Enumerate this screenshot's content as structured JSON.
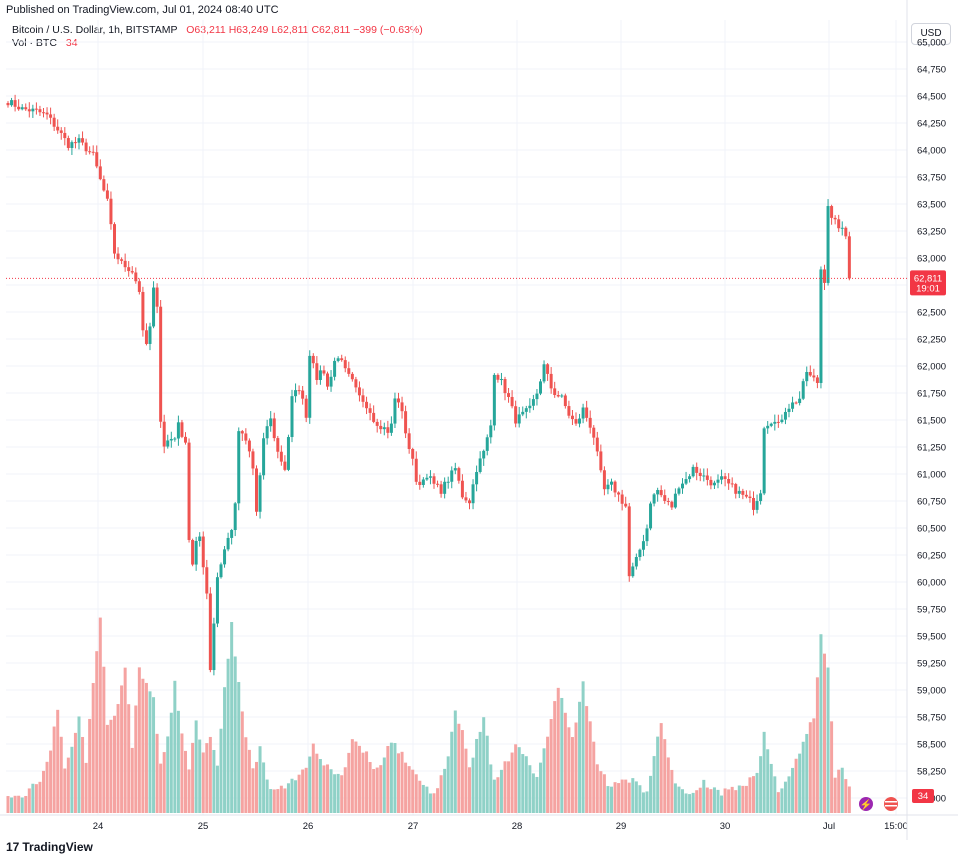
{
  "header": {
    "published": "Published on TradingView.com, Jul 01, 2024 08:40 UTC",
    "symbol": "Bitcoin / U.S. Dollar, 1h, BITSTAMP",
    "open": "O63,211",
    "high": "H63,249",
    "low": "L62,811",
    "close": "C62,811",
    "change": "−399 (−0.63%)",
    "vol_label": "Vol · BTC",
    "vol_value": "34"
  },
  "currency_button": "USD",
  "price_badge": {
    "price": "62,811",
    "countdown": "19:01"
  },
  "volume_badge": "34",
  "footer": {
    "logo_mark": "17",
    "logo_text": "TradingView"
  },
  "colors": {
    "up": "#26a69a",
    "down": "#ef5350",
    "up_vol": "#8fd1c7",
    "down_vol": "#f5a3a1",
    "badge": "#f23645"
  },
  "chart_data": {
    "type": "candlestick",
    "title": "Bitcoin / U.S. Dollar, 1h, BITSTAMP",
    "ylim": [
      57950,
      65000
    ],
    "y_ticks": [
      "65,000",
      "64,750",
      "64,500",
      "64,250",
      "64,000",
      "63,750",
      "63,500",
      "63,250",
      "63,000",
      "62,750",
      "62,500",
      "62,250",
      "62,000",
      "61,750",
      "61,500",
      "61,250",
      "61,000",
      "60,750",
      "60,500",
      "60,250",
      "60,000",
      "59,750",
      "59,500",
      "59,250",
      "59,000",
      "58,750",
      "58,500",
      "58,250",
      "58,000"
    ],
    "x_ticks": [
      "24",
      "25",
      "26",
      "27",
      "28",
      "29",
      "30",
      "Jul",
      "15:00"
    ],
    "last_price": 62811,
    "close_path": [
      [
        0,
        64450
      ],
      [
        4,
        64380
      ],
      [
        8,
        64360
      ],
      [
        11,
        64320
      ],
      [
        14,
        64190
      ],
      [
        17,
        64050
      ],
      [
        20,
        64080
      ],
      [
        24,
        63950
      ],
      [
        26,
        63720
      ],
      [
        28,
        63520
      ],
      [
        30,
        63050
      ],
      [
        32,
        62950
      ],
      [
        35,
        62880
      ],
      [
        37,
        62700
      ],
      [
        38,
        62300
      ],
      [
        39,
        62200
      ],
      [
        40,
        62350
      ],
      [
        41,
        62700
      ],
      [
        42,
        62580
      ],
      [
        43,
        61500
      ],
      [
        44,
        61250
      ],
      [
        45,
        61310
      ],
      [
        47,
        61350
      ],
      [
        48,
        61450
      ],
      [
        50,
        61300
      ],
      [
        51,
        60400
      ],
      [
        52,
        60150
      ],
      [
        53,
        60350
      ],
      [
        54,
        60420
      ],
      [
        56,
        59900
      ],
      [
        57,
        59200
      ],
      [
        59,
        60050
      ],
      [
        61,
        60300
      ],
      [
        63,
        60500
      ],
      [
        64,
        60700
      ],
      [
        65,
        61400
      ],
      [
        67,
        61300
      ],
      [
        68,
        61200
      ],
      [
        69,
        61050
      ],
      [
        70,
        60650
      ],
      [
        72,
        61300
      ],
      [
        73,
        61450
      ],
      [
        74,
        61500
      ],
      [
        75,
        61350
      ],
      [
        76,
        61200
      ],
      [
        78,
        61050
      ],
      [
        79,
        61350
      ],
      [
        80,
        61700
      ],
      [
        82,
        61800
      ],
      [
        84,
        61550
      ],
      [
        85,
        62100
      ],
      [
        86,
        62050
      ],
      [
        87,
        61900
      ],
      [
        89,
        61950
      ],
      [
        90,
        61800
      ],
      [
        92,
        62050
      ],
      [
        94,
        62080
      ],
      [
        95,
        61950
      ],
      [
        97,
        61850
      ],
      [
        99,
        61700
      ],
      [
        100,
        61650
      ],
      [
        102,
        61600
      ],
      [
        103,
        61500
      ],
      [
        105,
        61450
      ],
      [
        107,
        61400
      ],
      [
        108,
        61450
      ],
      [
        109,
        61700
      ],
      [
        111,
        61600
      ],
      [
        112,
        61350
      ],
      [
        114,
        61150
      ],
      [
        115,
        60900
      ],
      [
        117,
        60950
      ],
      [
        118,
        61000
      ],
      [
        120,
        60900
      ],
      [
        122,
        60850
      ],
      [
        124,
        60950
      ],
      [
        126,
        61050
      ],
      [
        128,
        60800
      ],
      [
        130,
        60750
      ],
      [
        132,
        61050
      ],
      [
        134,
        61200
      ],
      [
        136,
        61450
      ],
      [
        137,
        61950
      ],
      [
        139,
        61850
      ],
      [
        141,
        61700
      ],
      [
        143,
        61500
      ],
      [
        145,
        61550
      ],
      [
        147,
        61600
      ],
      [
        149,
        61750
      ],
      [
        151,
        62000
      ],
      [
        153,
        61800
      ],
      [
        154,
        61750
      ],
      [
        156,
        61700
      ],
      [
        158,
        61550
      ],
      [
        160,
        61450
      ],
      [
        162,
        61600
      ],
      [
        164,
        61450
      ],
      [
        165,
        61350
      ],
      [
        167,
        61000
      ],
      [
        168,
        60850
      ],
      [
        170,
        60900
      ],
      [
        172,
        60800
      ],
      [
        174,
        60700
      ],
      [
        175,
        60050
      ],
      [
        177,
        60200
      ],
      [
        178,
        60300
      ],
      [
        180,
        60500
      ],
      [
        181,
        60750
      ],
      [
        183,
        60850
      ],
      [
        185,
        60750
      ],
      [
        187,
        60700
      ],
      [
        189,
        60900
      ],
      [
        191,
        60950
      ],
      [
        193,
        61050
      ],
      [
        195,
        61000
      ],
      [
        197,
        60950
      ],
      [
        199,
        60900
      ],
      [
        201,
        60950
      ],
      [
        203,
        60900
      ],
      [
        205,
        60850
      ],
      [
        207,
        60800
      ],
      [
        209,
        60750
      ],
      [
        210,
        60700
      ],
      [
        212,
        60850
      ],
      [
        213,
        61450
      ],
      [
        215,
        61500
      ],
      [
        217,
        61450
      ],
      [
        219,
        61600
      ],
      [
        221,
        61650
      ],
      [
        223,
        61700
      ],
      [
        225,
        61950
      ],
      [
        226,
        61900
      ],
      [
        228,
        61850
      ],
      [
        229,
        62900
      ],
      [
        230,
        62800
      ],
      [
        231,
        63500
      ],
      [
        232,
        63350
      ],
      [
        234,
        63300
      ],
      [
        236,
        63200
      ],
      [
        237,
        62811
      ]
    ],
    "volume_profile": [
      [
        0,
        58010
      ],
      [
        5,
        58040
      ],
      [
        9,
        58150
      ],
      [
        12,
        58400
      ],
      [
        14,
        58850
      ],
      [
        16,
        58250
      ],
      [
        18,
        58450
      ],
      [
        20,
        58750
      ],
      [
        22,
        58350
      ],
      [
        24,
        59050
      ],
      [
        26,
        59700
      ],
      [
        28,
        58700
      ],
      [
        31,
        58850
      ],
      [
        33,
        59200
      ],
      [
        35,
        58500
      ],
      [
        37,
        59200
      ],
      [
        39,
        59050
      ],
      [
        41,
        58900
      ],
      [
        43,
        58300
      ],
      [
        45,
        58600
      ],
      [
        47,
        59050
      ],
      [
        49,
        58600
      ],
      [
        51,
        58300
      ],
      [
        53,
        58700
      ],
      [
        55,
        58400
      ],
      [
        57,
        58600
      ],
      [
        59,
        58300
      ],
      [
        61,
        59050
      ],
      [
        63,
        59600
      ],
      [
        65,
        59050
      ],
      [
        67,
        58600
      ],
      [
        69,
        58250
      ],
      [
        71,
        58450
      ],
      [
        73,
        58150
      ],
      [
        75,
        58050
      ],
      [
        80,
        58150
      ],
      [
        84,
        58300
      ],
      [
        86,
        58500
      ],
      [
        88,
        58350
      ],
      [
        90,
        58300
      ],
      [
        94,
        58200
      ],
      [
        97,
        58550
      ],
      [
        100,
        58450
      ],
      [
        104,
        58250
      ],
      [
        108,
        58550
      ],
      [
        112,
        58350
      ],
      [
        116,
        58150
      ],
      [
        120,
        58050
      ],
      [
        124,
        58350
      ],
      [
        126,
        58800
      ],
      [
        128,
        58650
      ],
      [
        130,
        58300
      ],
      [
        134,
        58750
      ],
      [
        137,
        58150
      ],
      [
        140,
        58300
      ],
      [
        143,
        58500
      ],
      [
        146,
        58400
      ],
      [
        149,
        58200
      ],
      [
        152,
        58550
      ],
      [
        155,
        59050
      ],
      [
        157,
        58800
      ],
      [
        159,
        58550
      ],
      [
        162,
        59050
      ],
      [
        166,
        58300
      ],
      [
        170,
        58100
      ],
      [
        174,
        58150
      ],
      [
        176,
        58200
      ],
      [
        180,
        58050
      ],
      [
        184,
        58700
      ],
      [
        188,
        58100
      ],
      [
        192,
        58050
      ],
      [
        196,
        58150
      ],
      [
        200,
        58050
      ],
      [
        204,
        58100
      ],
      [
        208,
        58150
      ],
      [
        211,
        58200
      ],
      [
        213,
        58650
      ],
      [
        215,
        58300
      ],
      [
        217,
        58050
      ],
      [
        219,
        58150
      ],
      [
        221,
        58250
      ],
      [
        223,
        58450
      ],
      [
        225,
        58600
      ],
      [
        227,
        58750
      ],
      [
        229,
        59550
      ],
      [
        231,
        59200
      ],
      [
        233,
        58200
      ],
      [
        235,
        58250
      ],
      [
        237,
        58100
      ]
    ]
  }
}
